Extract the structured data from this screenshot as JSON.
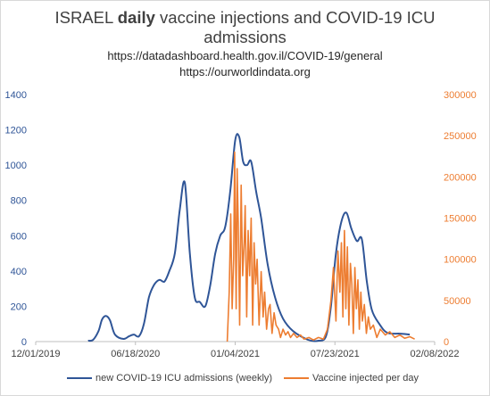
{
  "chart_data": {
    "type": "line",
    "title_prefix": "ISRAEL ",
    "title_bold": "daily",
    "title_suffix": " vaccine injections and COVID-19 ICU",
    "title_line2": "admissions",
    "subtitle1": "https://datadashboard.health.gov.il/COVID-19/general",
    "subtitle2": "https://ourworldindata.org",
    "x_tick_labels": [
      "12/01/2019",
      "06/18/2020",
      "01/04/2021",
      "07/23/2021",
      "02/08/2022"
    ],
    "y_left_ticks": [
      "0",
      "200",
      "400",
      "600",
      "800",
      "1000",
      "1200",
      "1400"
    ],
    "y_right_ticks": [
      "0",
      "50000",
      "100000",
      "150000",
      "200000",
      "250000",
      "300000"
    ],
    "y_left_range": [
      0,
      1400
    ],
    "y_right_range": [
      0,
      300000
    ],
    "x_range": [
      "2019-12-01",
      "2022-02-08"
    ],
    "colors": {
      "icu": "#2f5597",
      "vaccine": "#ed7d31",
      "left_axis": "#2f5597",
      "right_axis": "#ed7d31"
    },
    "legend": {
      "icu": "new COVID-19 ICU admissions (weekly)",
      "vaccine": "Vaccine injected per day"
    },
    "series": [
      {
        "name": "new COVID-19 ICU admissions (weekly)",
        "axis": "left",
        "x": [
          "2020-03-15",
          "2020-03-25",
          "2020-04-05",
          "2020-04-12",
          "2020-04-20",
          "2020-04-28",
          "2020-05-08",
          "2020-05-25",
          "2020-06-05",
          "2020-06-15",
          "2020-06-25",
          "2020-07-05",
          "2020-07-15",
          "2020-07-25",
          "2020-08-05",
          "2020-08-15",
          "2020-08-25",
          "2020-09-05",
          "2020-09-15",
          "2020-09-25",
          "2020-10-05",
          "2020-10-15",
          "2020-10-25",
          "2020-11-05",
          "2020-11-15",
          "2020-11-25",
          "2020-12-05",
          "2020-12-15",
          "2020-12-25",
          "2021-01-04",
          "2021-01-12",
          "2021-01-20",
          "2021-01-28",
          "2021-02-05",
          "2021-02-15",
          "2021-02-25",
          "2021-03-10",
          "2021-03-25",
          "2021-04-10",
          "2021-04-30",
          "2021-05-30",
          "2021-06-20",
          "2021-07-05",
          "2021-07-15",
          "2021-07-25",
          "2021-08-05",
          "2021-08-15",
          "2021-08-25",
          "2021-09-05",
          "2021-09-15",
          "2021-09-25",
          "2021-10-05",
          "2021-10-20",
          "2021-11-05",
          "2021-12-01",
          "2021-12-20"
        ],
        "values": [
          5,
          10,
          60,
          125,
          145,
          120,
          40,
          15,
          30,
          40,
          30,
          100,
          250,
          320,
          350,
          340,
          400,
          500,
          750,
          900,
          500,
          250,
          225,
          200,
          320,
          500,
          600,
          650,
          850,
          1140,
          1160,
          1020,
          1000,
          1020,
          850,
          700,
          440,
          250,
          130,
          60,
          10,
          5,
          30,
          200,
          500,
          680,
          730,
          640,
          570,
          580,
          340,
          180,
          100,
          50,
          45,
          40
        ]
      },
      {
        "name": "Vaccine injected per day",
        "axis": "right",
        "x": [
          "2020-12-19",
          "2020-12-23",
          "2020-12-26",
          "2020-12-29",
          "2021-01-01",
          "2021-01-03",
          "2021-01-06",
          "2021-01-08",
          "2021-01-10",
          "2021-01-13",
          "2021-01-16",
          "2021-01-19",
          "2021-01-22",
          "2021-01-24",
          "2021-01-27",
          "2021-01-30",
          "2021-02-02",
          "2021-02-05",
          "2021-02-08",
          "2021-02-11",
          "2021-02-14",
          "2021-02-17",
          "2021-02-21",
          "2021-02-25",
          "2021-03-01",
          "2021-03-04",
          "2021-03-08",
          "2021-03-12",
          "2021-03-15",
          "2021-03-19",
          "2021-03-23",
          "2021-03-27",
          "2021-04-01",
          "2021-04-05",
          "2021-04-10",
          "2021-04-15",
          "2021-04-20",
          "2021-04-25",
          "2021-05-01",
          "2021-05-08",
          "2021-05-15",
          "2021-05-22",
          "2021-06-01",
          "2021-06-10",
          "2021-06-20",
          "2021-06-30",
          "2021-07-08",
          "2021-07-15",
          "2021-07-20",
          "2021-07-25",
          "2021-07-29",
          "2021-08-02",
          "2021-08-05",
          "2021-08-08",
          "2021-08-11",
          "2021-08-14",
          "2021-08-17",
          "2021-08-20",
          "2021-08-23",
          "2021-08-26",
          "2021-08-29",
          "2021-09-01",
          "2021-09-04",
          "2021-09-07",
          "2021-09-10",
          "2021-09-13",
          "2021-09-16",
          "2021-09-20",
          "2021-09-24",
          "2021-09-28",
          "2021-10-02",
          "2021-10-08",
          "2021-10-15",
          "2021-10-22",
          "2021-11-01",
          "2021-11-10",
          "2021-11-20",
          "2021-11-30",
          "2021-12-10",
          "2021-12-20",
          "2021-12-30"
        ],
        "values": [
          0,
          60000,
          155000,
          40000,
          100000,
          230000,
          40000,
          210000,
          145000,
          20000,
          190000,
          80000,
          120000,
          165000,
          30000,
          135000,
          80000,
          150000,
          20000,
          120000,
          70000,
          100000,
          20000,
          85000,
          30000,
          60000,
          15000,
          40000,
          45000,
          10000,
          35000,
          20000,
          15000,
          5000,
          15000,
          8000,
          12000,
          5000,
          10000,
          5000,
          8000,
          3000,
          5000,
          2000,
          5000,
          3000,
          15000,
          50000,
          90000,
          25000,
          110000,
          60000,
          120000,
          30000,
          135000,
          40000,
          115000,
          20000,
          95000,
          70000,
          10000,
          90000,
          40000,
          75000,
          15000,
          60000,
          25000,
          45000,
          10000,
          30000,
          15000,
          20000,
          5000,
          15000,
          8000,
          12000,
          5000,
          8000,
          4000,
          6000,
          3000
        ]
      }
    ]
  }
}
